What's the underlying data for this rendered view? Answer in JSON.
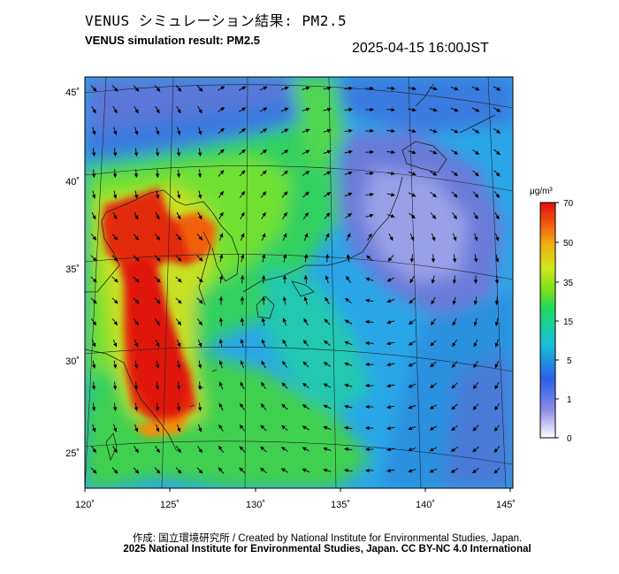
{
  "header": {
    "title_jp": "VENUS シミュレーション結果: PM2.5",
    "title_en": "VENUS simulation result: PM2.5",
    "timestamp": "2025-04-15 16:00JST"
  },
  "map": {
    "lon_ticks": [
      "120˚",
      "125˚",
      "130˚",
      "135˚",
      "140˚",
      "145˚"
    ],
    "lat_ticks": [
      "45˚",
      "40˚",
      "35˚",
      "30˚",
      "25˚"
    ],
    "lon_range": [
      120,
      145
    ],
    "lat_range": [
      23,
      46
    ],
    "layers": [
      "PM2.5 concentration field",
      "wind vectors",
      "coastlines",
      "graticule"
    ]
  },
  "colorbar": {
    "unit": "μg/m³",
    "ticks": [
      "70",
      "50",
      "35",
      "15",
      "5",
      "1",
      "0"
    ],
    "colors": [
      "#ffffff",
      "#7080e0",
      "#1f6fe8",
      "#18c8d8",
      "#20d860",
      "#60e020",
      "#c8e818",
      "#f0c010",
      "#f07010",
      "#e02010"
    ]
  },
  "footer": {
    "credit_jp_en": "作成: 国立環境研究所 / Created by National Institute for Environmental Studies, Japan.",
    "license": "2025 National Institute for Environmental Studies, Japan. CC BY-NC 4.0 International"
  }
}
